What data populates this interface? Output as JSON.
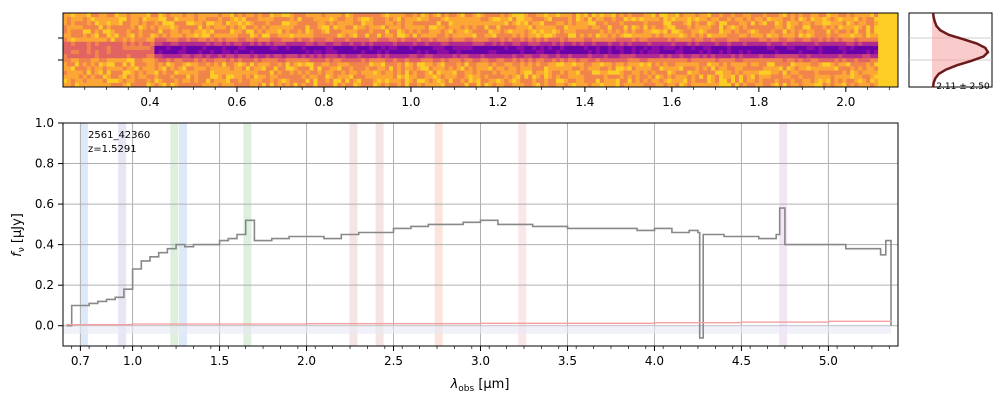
{
  "chart_data": [
    {
      "type": "heatmap",
      "panel": "2d-spectrum",
      "top_axis_label": "",
      "top_ticks": [
        "0.4",
        "0.6",
        "0.8",
        "1.0",
        "1.2",
        "1.4",
        "1.6",
        "1.8",
        "2.0"
      ],
      "top_tick_values": [
        0.4,
        0.6,
        0.8,
        1.0,
        1.2,
        1.4,
        1.6,
        1.8,
        2.0
      ],
      "xlim": [
        0.2,
        2.12
      ],
      "colormap": "plasma (reversed)",
      "trace": "absorption-like dark trace along spatial center"
    },
    {
      "type": "line",
      "panel": "spatial-profile",
      "annotation": "2.11 ± 2.50",
      "fill_color": "#f4a0a0",
      "line_color": "#6b1a1a",
      "profile": [
        0.02,
        0.03,
        0.05,
        0.08,
        0.15,
        0.3,
        0.55,
        0.8,
        0.95,
        1.0,
        0.92,
        0.7,
        0.45,
        0.25,
        0.12,
        0.06,
        0.03,
        0.02
      ]
    },
    {
      "type": "line",
      "panel": "1d-spectrum",
      "object_id": "2561_42360",
      "redshift_label": "z=1.5291",
      "xlabel": "λobs [μm]",
      "xlabel_main": "λ",
      "xlabel_sub": "obs",
      "xlabel_unit": " [μm]",
      "ylabel": "fν [μJy]",
      "ylabel_main": "f",
      "ylabel_sub": "ν",
      "ylabel_unit": " [μJy]",
      "xlim": [
        0.6,
        5.4
      ],
      "ylim": [
        -0.1,
        1.0
      ],
      "grid": true,
      "x_tick_labels": [
        "0.7",
        "1.0",
        "1.5",
        "2.0",
        "2.5",
        "3.0",
        "3.5",
        "4.0",
        "4.5",
        "5.0"
      ],
      "x_tick_values": [
        0.7,
        1.0,
        1.5,
        2.0,
        2.5,
        3.0,
        3.5,
        4.0,
        4.5,
        5.0
      ],
      "y_tick_labels": [
        "0.0",
        "0.2",
        "0.4",
        "0.6",
        "0.8",
        "1.0"
      ],
      "y_tick_values": [
        0.0,
        0.2,
        0.4,
        0.6,
        0.8,
        1.0
      ],
      "series": [
        {
          "color": "#888888",
          "x": [
            0.62,
            0.65,
            0.7,
            0.75,
            0.8,
            0.85,
            0.9,
            0.95,
            1.0,
            1.05,
            1.1,
            1.15,
            1.2,
            1.25,
            1.3,
            1.35,
            1.4,
            1.45,
            1.5,
            1.55,
            1.6,
            1.65,
            1.7,
            1.8,
            1.9,
            2.0,
            2.1,
            2.2,
            2.3,
            2.4,
            2.5,
            2.6,
            2.7,
            2.8,
            2.9,
            3.0,
            3.1,
            3.2,
            3.3,
            3.4,
            3.5,
            3.6,
            3.7,
            3.8,
            3.9,
            4.0,
            4.1,
            4.2,
            4.25,
            4.26,
            4.28,
            4.3,
            4.4,
            4.5,
            4.6,
            4.7,
            4.72,
            4.75,
            4.8,
            4.9,
            5.0,
            5.1,
            5.2,
            5.3,
            5.33,
            5.36
          ],
          "y": [
            0.0,
            0.1,
            0.1,
            0.11,
            0.12,
            0.13,
            0.14,
            0.18,
            0.28,
            0.32,
            0.34,
            0.36,
            0.38,
            0.4,
            0.39,
            0.4,
            0.4,
            0.4,
            0.42,
            0.43,
            0.45,
            0.52,
            0.42,
            0.43,
            0.44,
            0.44,
            0.43,
            0.45,
            0.46,
            0.46,
            0.48,
            0.49,
            0.5,
            0.5,
            0.51,
            0.52,
            0.5,
            0.5,
            0.49,
            0.49,
            0.48,
            0.48,
            0.48,
            0.48,
            0.47,
            0.48,
            0.46,
            0.47,
            0.46,
            -0.06,
            0.45,
            0.45,
            0.44,
            0.44,
            0.43,
            0.45,
            0.58,
            0.4,
            0.4,
            0.4,
            0.4,
            0.38,
            0.38,
            0.35,
            0.42,
            0.0
          ]
        },
        {
          "color": "#f4a0a0",
          "x": [
            0.62,
            1.0,
            2.0,
            3.0,
            4.0,
            4.5,
            5.0,
            5.36
          ],
          "y": [
            0.005,
            0.008,
            0.01,
            0.012,
            0.015,
            0.018,
            0.022,
            0.025
          ]
        }
      ],
      "shaded_lines": [
        {
          "x": 0.72,
          "color": "#cfe0f5"
        },
        {
          "x": 0.94,
          "color": "#dedcf0"
        },
        {
          "x": 1.24,
          "color": "#cfe8cf"
        },
        {
          "x": 1.29,
          "color": "#cfe0f5"
        },
        {
          "x": 1.66,
          "color": "#cfe8cf"
        },
        {
          "x": 2.27,
          "color": "#f0d8d8"
        },
        {
          "x": 2.42,
          "color": "#f0d8d8"
        },
        {
          "x": 2.76,
          "color": "#f8d8cc"
        },
        {
          "x": 3.24,
          "color": "#f8dde0"
        },
        {
          "x": 4.74,
          "color": "#f0daf0"
        }
      ]
    }
  ]
}
